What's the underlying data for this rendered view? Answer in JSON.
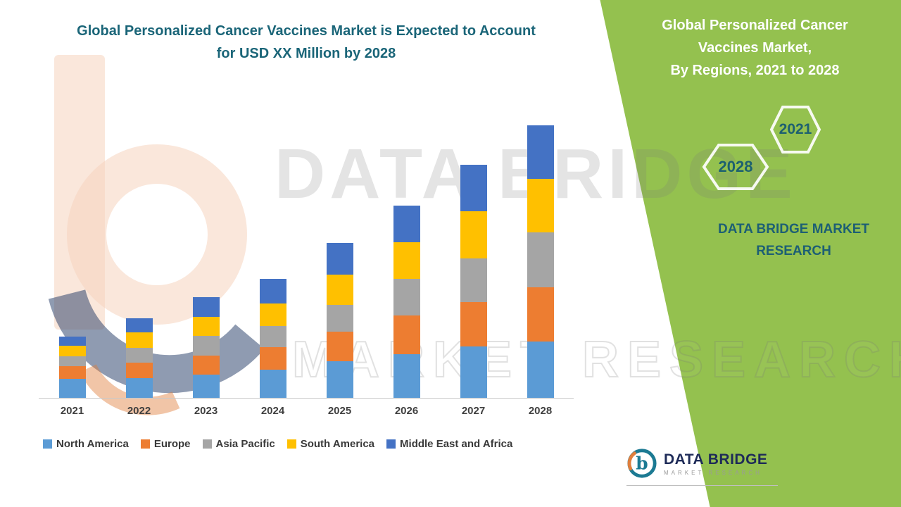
{
  "main_title": {
    "line1": "Global Personalized Cancer Vaccines Market is Expected to Account",
    "line2": "for USD XX Million by 2028"
  },
  "side_panel": {
    "title": {
      "line1": "Global Personalized Cancer",
      "line2": "Vaccines Market,",
      "line3": "By Regions, 2021 to 2028"
    },
    "hex_2021": "2021",
    "hex_2028": "2028",
    "brand_line1": "DATA BRIDGE MARKET",
    "brand_line2": "RESEARCH"
  },
  "watermark": {
    "line1": "DATA BRIDGE",
    "line2": "MARKET RESEARCH"
  },
  "footer": {
    "brand": "DATA BRIDGE",
    "sub": "MARKET  RESEARCH",
    "icon_letter": "b"
  },
  "colors": {
    "panel_green": "#94C14F",
    "title_teal": "#1A6578",
    "brand_teal": "#1D5F74",
    "north_america": "#5B9BD5",
    "europe": "#ED7D31",
    "asia_pacific": "#A5A5A5",
    "south_america": "#FFC000",
    "middle_east_africa": "#4472C4"
  },
  "chart_data": {
    "type": "bar",
    "stacked": true,
    "title": "Global Personalized Cancer Vaccines Market, By Regions, 2021 to 2028",
    "xlabel": "",
    "ylabel": "",
    "y_axis_visible": false,
    "values_are_relative_estimates": true,
    "legend_position": "bottom",
    "categories": [
      "2021",
      "2022",
      "2023",
      "2024",
      "2025",
      "2026",
      "2027",
      "2028"
    ],
    "series": [
      {
        "name": "North America",
        "color": "#5B9BD5",
        "values": [
          27,
          28,
          33,
          40,
          52,
          62,
          72,
          79
        ]
      },
      {
        "name": "Europe",
        "color": "#ED7D31",
        "values": [
          18,
          22,
          27,
          32,
          42,
          55,
          63,
          76
        ]
      },
      {
        "name": "Asia Pacific",
        "color": "#A5A5A5",
        "values": [
          14,
          21,
          28,
          30,
          38,
          52,
          62,
          77
        ]
      },
      {
        "name": "South America",
        "color": "#FFC000",
        "values": [
          15,
          22,
          27,
          32,
          43,
          52,
          66,
          75
        ]
      },
      {
        "name": "Middle East and Africa",
        "color": "#4472C4",
        "values": [
          13,
          20,
          28,
          35,
          45,
          52,
          65,
          75
        ]
      }
    ],
    "totals": [
      87,
      113,
      143,
      169,
      220,
      273,
      328,
      382
    ]
  }
}
